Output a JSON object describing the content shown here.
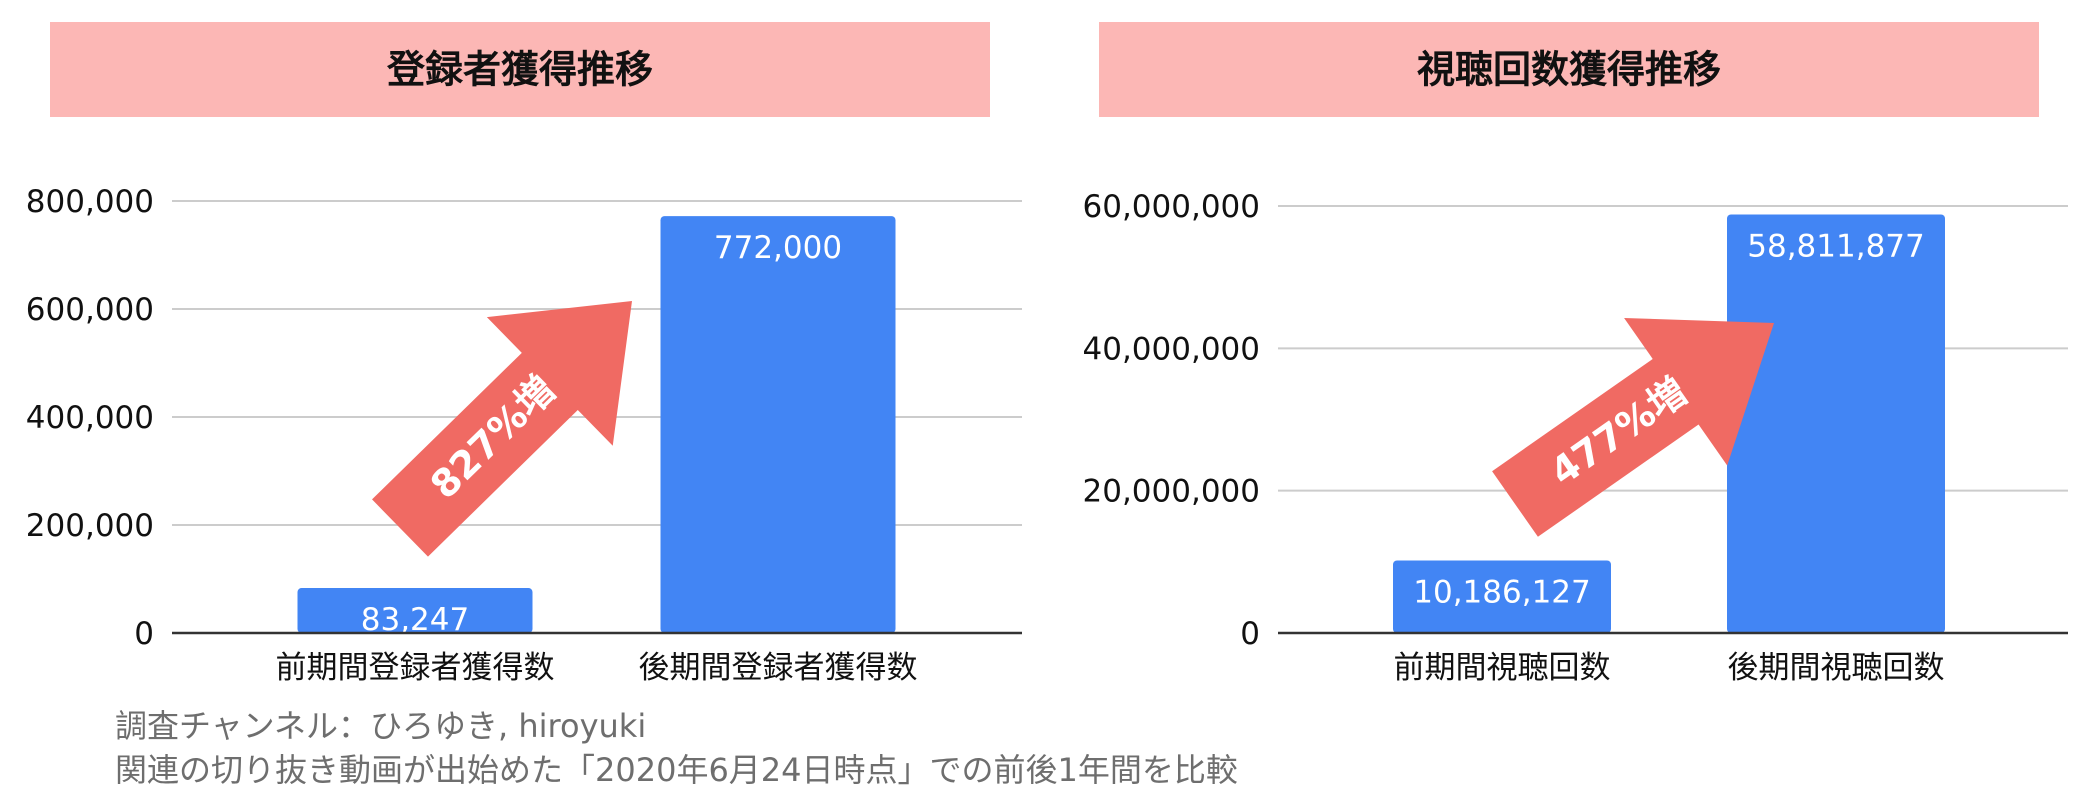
{
  "colors": {
    "banner": "#fcb7b5",
    "bar": "#4285f4",
    "arrow": "#f06a63",
    "grid": "#cccccc",
    "axis": "#333333",
    "text": "#111111",
    "caption": "#6e6e6e"
  },
  "chart_data": [
    {
      "type": "bar",
      "title": "登録者獲得推移",
      "xlabel": "",
      "ylabel": "",
      "categories": [
        "前期間登録者獲得数",
        "後期間登録者獲得数"
      ],
      "values": [
        83247,
        772000
      ],
      "value_labels": [
        "83,247",
        "772,000"
      ],
      "ylim": [
        0,
        800000
      ],
      "yticks": [
        0,
        200000,
        400000,
        600000,
        800000
      ],
      "ytick_labels": [
        "0",
        "200,000",
        "400,000",
        "600,000",
        "800,000"
      ],
      "grid": true,
      "legend": "none",
      "annotation": "827%増"
    },
    {
      "type": "bar",
      "title": "視聴回数獲得推移",
      "xlabel": "",
      "ylabel": "",
      "categories": [
        "前期間視聴回数",
        "後期間視聴回数"
      ],
      "values": [
        10186127,
        58811877
      ],
      "value_labels": [
        "10,186,127",
        "58,811,877"
      ],
      "ylim": [
        0,
        60000000
      ],
      "yticks": [
        0,
        20000000,
        40000000,
        60000000
      ],
      "ytick_labels": [
        "0",
        "20,000,000",
        "40,000,000",
        "60,000,000"
      ],
      "grid": true,
      "legend": "none",
      "annotation": "477%増"
    }
  ],
  "caption": {
    "line1": "調査チャンネル：ひろゆき, hiroyuki",
    "line2": "関連の切り抜き動画が出始めた「2020年6月24日時点」での前後1年間を比較"
  }
}
